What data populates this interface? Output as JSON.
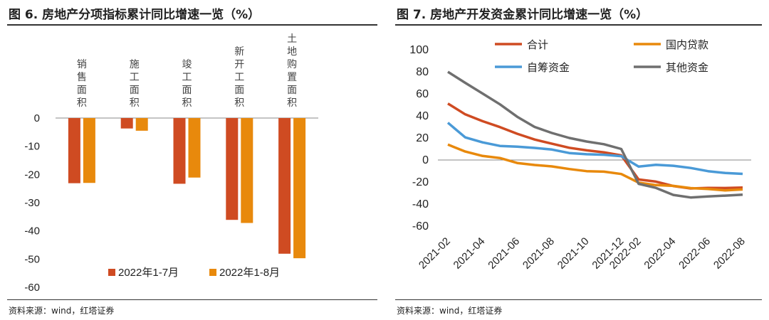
{
  "chart_data": [
    {
      "type": "bar",
      "title": "图 6. 房地产分项指标累计同比增速一览（%）",
      "categories": [
        "销售面积",
        "施工面积",
        "竣工面积",
        "新开工面积",
        "土地购置面积"
      ],
      "series": [
        {
          "name": "2022年1-7月",
          "values": [
            -23.1,
            -3.7,
            -23.3,
            -36.1,
            -48.1
          ],
          "color": "#cf4b22"
        },
        {
          "name": "2022年1-8月",
          "values": [
            -23.0,
            -4.5,
            -21.1,
            -37.2,
            -49.7
          ],
          "color": "#e8890c"
        }
      ],
      "yticks": [
        "0",
        "-10",
        "-20",
        "-30",
        "-40",
        "-50",
        "-60"
      ],
      "ylim": [
        -60,
        0
      ],
      "legend": "bottom",
      "source": "资料来源：wind，红塔证券"
    },
    {
      "type": "line",
      "title": "图 7. 房地产开发资金累计同比增速一览（%）",
      "x": [
        "2021-02",
        "2021-03",
        "2021-04",
        "2021-05",
        "2021-06",
        "2021-07",
        "2021-08",
        "2021-09",
        "2021-10",
        "2021-11",
        "2021-12",
        "2022-02",
        "2022-03",
        "2022-04",
        "2022-05",
        "2022-06",
        "2022-07",
        "2022-08"
      ],
      "xticks": [
        "2021-02",
        "2021-04",
        "2021-06",
        "2021-08",
        "2021-10",
        "2021-12",
        "2022-02",
        "2022-04",
        "2022-06",
        "2022-08"
      ],
      "series": [
        {
          "name": "合计",
          "color": "#cf4b22",
          "values": [
            51.2,
            41.4,
            35.2,
            29.9,
            23.8,
            18.6,
            14.8,
            11.1,
            8.8,
            7.0,
            4.2,
            -17.7,
            -19.6,
            -23.6,
            -25.8,
            -25.3,
            -25.4,
            -25.0
          ]
        },
        {
          "name": "国内贷款",
          "color": "#e8890c",
          "values": [
            14.0,
            7.7,
            3.7,
            1.8,
            -2.7,
            -4.5,
            -5.8,
            -8.2,
            -10.1,
            -10.6,
            -12.7,
            -20.5,
            -22.8,
            -23.5,
            -25.5,
            -26.3,
            -27.6,
            -26.7
          ]
        },
        {
          "name": "自筹资金",
          "color": "#4a9ad7",
          "values": [
            33.8,
            20.5,
            16.0,
            12.8,
            12.1,
            11.0,
            9.5,
            6.3,
            5.2,
            4.8,
            3.5,
            -6.0,
            -4.4,
            -5.2,
            -7.2,
            -10.1,
            -11.8,
            -12.6
          ]
        },
        {
          "name": "其他资金",
          "color": "#6f6f6f",
          "values": [
            80.0,
            70.0,
            60.3,
            50.5,
            39.2,
            30.0,
            24.5,
            20.0,
            16.8,
            14.3,
            10.0,
            -21.6,
            -25.3,
            -31.7,
            -34.0,
            -33.0,
            -32.3,
            -31.5
          ]
        }
      ],
      "yticks": [
        "100",
        "80",
        "60",
        "40",
        "20",
        "0",
        "-20",
        "-40",
        "-60"
      ],
      "ylim": [
        -60,
        100
      ],
      "legend": "top",
      "source": "资料来源：wind，红塔证券"
    }
  ]
}
